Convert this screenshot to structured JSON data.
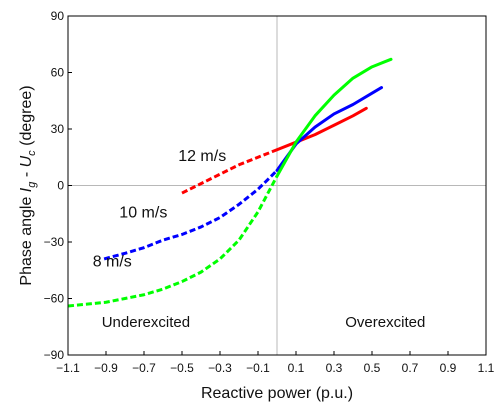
{
  "chart_data": {
    "type": "line",
    "title": "",
    "xlabel": "Reactive power (p.u.)",
    "ylabel": "Phase angle I_g - U_c (degree)",
    "ylabel_parts": {
      "prefix": "Phase angle ",
      "var1": "I",
      "sub1": "g",
      "middle": " - ",
      "var2": "U",
      "sub2": "c",
      "suffix": " (degree)"
    },
    "xlim": [
      -1.1,
      1.1
    ],
    "ylim": [
      -90,
      90
    ],
    "xticks": [
      -1.1,
      -0.9,
      -0.7,
      -0.5,
      -0.3,
      -0.1,
      0.1,
      0.3,
      0.5,
      0.7,
      0.9,
      1.1
    ],
    "xtick_labels": [
      "−1.1",
      "−0.9",
      "−0.7",
      "−0.5",
      "−0.3",
      "−0.1",
      "0.1",
      "0.3",
      "0.5",
      "0.7",
      "0.9",
      "1.1"
    ],
    "yticks": [
      -90,
      -60,
      -30,
      0,
      30,
      60,
      90
    ],
    "ytick_labels": [
      "−90",
      "−60",
      "−30",
      "0",
      "30",
      "60",
      "90"
    ],
    "grid": false,
    "reference_lines": {
      "x": 0,
      "y": 0
    },
    "annotations": [
      {
        "text": "Underexcited",
        "x": -0.69,
        "y": -75
      },
      {
        "text": "Overexcited",
        "x": 0.57,
        "y": -75
      }
    ],
    "series": [
      {
        "name": "12 m/s",
        "label_at": {
          "x": -0.52,
          "y": 13
        },
        "color": "#ff0000",
        "x": [
          -0.5,
          -0.4,
          -0.3,
          -0.2,
          -0.1,
          0.0,
          0.1,
          0.2,
          0.3,
          0.4,
          0.47
        ],
        "y": [
          -4,
          1,
          6,
          11,
          15,
          19,
          23,
          27,
          32,
          37,
          41
        ]
      },
      {
        "name": "10 m/s",
        "label_at": {
          "x": -0.83,
          "y": -17
        },
        "color": "#0000ff",
        "x": [
          -0.91,
          -0.8,
          -0.7,
          -0.6,
          -0.5,
          -0.4,
          -0.3,
          -0.2,
          -0.1,
          0.0,
          0.1,
          0.2,
          0.3,
          0.4,
          0.5,
          0.55
        ],
        "y": [
          -39,
          -36,
          -33,
          -29,
          -26,
          -22,
          -17,
          -10,
          -2,
          8,
          22,
          31,
          38,
          43,
          49,
          52
        ]
      },
      {
        "name": "8 m/s",
        "label_at": {
          "x": -0.97,
          "y": -43
        },
        "color": "#00ff00",
        "x": [
          -1.1,
          -1.0,
          -0.9,
          -0.8,
          -0.7,
          -0.6,
          -0.5,
          -0.4,
          -0.3,
          -0.2,
          -0.1,
          0.0,
          0.05,
          0.1,
          0.2,
          0.3,
          0.4,
          0.5,
          0.6
        ],
        "y": [
          -64,
          -63,
          -62,
          -60,
          -58,
          -55,
          -51,
          -46,
          -39,
          -29,
          -14,
          5,
          14,
          23,
          37,
          48,
          57,
          63,
          67
        ]
      }
    ]
  }
}
